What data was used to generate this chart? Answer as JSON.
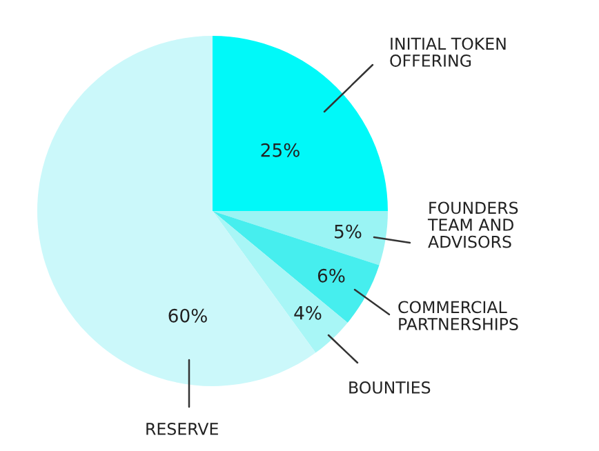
{
  "chart_data": {
    "type": "pie",
    "categories": [
      "INITIAL TOKEN\nOFFERING",
      "FOUNDERS\nTEAM AND\nADVISORS",
      "COMMERCIAL\nPARTNERSHIPS",
      "BOUNTIES",
      "RESERVE"
    ],
    "values": [
      25,
      5,
      6,
      4,
      60
    ],
    "value_labels": [
      "25%",
      "5%",
      "6%",
      "4%",
      "60%"
    ],
    "colors": [
      "#00f9f9",
      "#9af4f4",
      "#46eeee",
      "#a8f6f6",
      "#cbf8fa"
    ]
  }
}
